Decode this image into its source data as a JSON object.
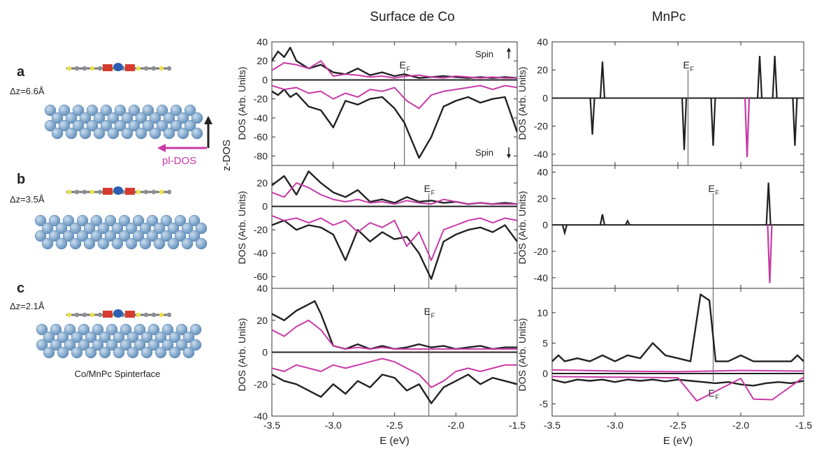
{
  "columns": {
    "left_title": "Surface de Co",
    "right_title": "MnPc"
  },
  "rows": [
    {
      "label": "a",
      "dz": "Δz=6.6Å"
    },
    {
      "label": "b",
      "dz": "Δz=3.5Å"
    },
    {
      "label": "c",
      "dz": "Δz=2.1Å"
    }
  ],
  "structure_caption": "Co/MnPc Spinterface",
  "arrows": {
    "z_dos": "z-DOS",
    "pl_dos": "pl-DOS"
  },
  "spin_labels": {
    "up": "Spin",
    "down": "Spin"
  },
  "fermi_label": "E",
  "fermi_sub": "F",
  "xlabel": "E (eV)",
  "ylabel": "DOS (Arb. Units)",
  "colors": {
    "z": "#222222",
    "pl": "#c83aa6",
    "gray": "#9a9a9a",
    "atom": "#7fa7cf"
  },
  "chart_data": [
    {
      "type": "line",
      "panel": "left-a",
      "xlim": [
        -3.5,
        -1.5
      ],
      "ylim": [
        -90,
        40
      ],
      "yticks": [
        -80,
        -60,
        -40,
        -20,
        0,
        20,
        40
      ],
      "fermi": -2.42,
      "series": [
        {
          "x": [
            -3.5,
            -3.45,
            -3.4,
            -3.35,
            -3.3,
            -3.2,
            -3.1,
            -3.0,
            -2.9,
            -2.8,
            -2.7,
            -2.6,
            -2.5,
            -2.42,
            -2.3,
            -2.2,
            -2.1,
            -2.0,
            -1.9,
            -1.8,
            -1.7,
            -1.6,
            -1.5
          ],
          "y": [
            20,
            30,
            24,
            34,
            20,
            12,
            16,
            8,
            6,
            12,
            5,
            8,
            4,
            6,
            2,
            3,
            4,
            3,
            2,
            3,
            2,
            3,
            2
          ]
        },
        {
          "x": [
            -3.5,
            -3.45,
            -3.4,
            -3.35,
            -3.3,
            -3.2,
            -3.1,
            -3.0,
            -2.9,
            -2.8,
            -2.7,
            -2.6,
            -2.5,
            -2.42,
            -2.3,
            -2.2,
            -2.1,
            -2.0,
            -1.9,
            -1.8,
            -1.7,
            -1.6,
            -1.5
          ],
          "y": [
            -12,
            -16,
            -10,
            -18,
            -14,
            -28,
            -32,
            -50,
            -22,
            -26,
            -20,
            -18,
            -30,
            -45,
            -82,
            -60,
            -28,
            -22,
            -18,
            -24,
            -20,
            -18,
            -55
          ]
        },
        {
          "x": [
            -3.5,
            -3.4,
            -3.3,
            -3.2,
            -3.1,
            -3.0,
            -2.9,
            -2.8,
            -2.7,
            -2.6,
            -2.5,
            -2.4,
            -2.3,
            -2.2,
            -2.1,
            -2.0,
            -1.9,
            -1.8,
            -1.7,
            -1.6,
            -1.5
          ],
          "y": [
            10,
            18,
            16,
            12,
            20,
            4,
            6,
            5,
            3,
            4,
            2,
            4,
            5,
            3,
            2,
            4,
            3,
            2,
            3,
            2,
            2
          ]
        },
        {
          "x": [
            -3.5,
            -3.4,
            -3.3,
            -3.2,
            -3.1,
            -3.0,
            -2.9,
            -2.8,
            -2.7,
            -2.6,
            -2.5,
            -2.4,
            -2.3,
            -2.2,
            -2.1,
            -2.0,
            -1.9,
            -1.8,
            -1.7,
            -1.6,
            -1.5
          ],
          "y": [
            -6,
            -10,
            -8,
            -14,
            -12,
            -20,
            -14,
            -18,
            -10,
            -12,
            -8,
            -22,
            -30,
            -16,
            -12,
            -10,
            -8,
            -6,
            -10,
            -6,
            -8
          ]
        }
      ]
    },
    {
      "type": "line",
      "panel": "left-b",
      "xlim": [
        -3.5,
        -1.5
      ],
      "ylim": [
        -70,
        35
      ],
      "yticks": [
        -60,
        -40,
        -20,
        0,
        20
      ],
      "fermi": -2.22,
      "series": [
        {
          "x": [
            -3.5,
            -3.4,
            -3.3,
            -3.2,
            -3.1,
            -3.0,
            -2.9,
            -2.8,
            -2.7,
            -2.6,
            -2.5,
            -2.4,
            -2.3,
            -2.2,
            -2.1,
            -2.0,
            -1.9,
            -1.8,
            -1.7,
            -1.6,
            -1.5
          ],
          "y": [
            18,
            26,
            10,
            30,
            20,
            12,
            8,
            14,
            4,
            6,
            3,
            8,
            4,
            5,
            3,
            4,
            2,
            3,
            2,
            3,
            2
          ]
        },
        {
          "x": [
            -3.5,
            -3.4,
            -3.3,
            -3.2,
            -3.1,
            -3.0,
            -2.9,
            -2.8,
            -2.7,
            -2.6,
            -2.5,
            -2.4,
            -2.3,
            -2.2,
            -2.1,
            -2.0,
            -1.9,
            -1.8,
            -1.7,
            -1.6,
            -1.5
          ],
          "y": [
            -16,
            -12,
            -20,
            -16,
            -18,
            -24,
            -46,
            -20,
            -30,
            -22,
            -28,
            -26,
            -40,
            -62,
            -30,
            -24,
            -20,
            -18,
            -22,
            -16,
            -30
          ]
        },
        {
          "x": [
            -3.5,
            -3.4,
            -3.3,
            -3.2,
            -3.1,
            -3.0,
            -2.9,
            -2.8,
            -2.7,
            -2.6,
            -2.5,
            -2.4,
            -2.3,
            -2.2,
            -2.1,
            -2.0,
            -1.9,
            -1.8,
            -1.7,
            -1.6,
            -1.5
          ],
          "y": [
            12,
            8,
            20,
            16,
            10,
            6,
            4,
            6,
            3,
            4,
            2,
            5,
            3,
            2,
            6,
            4,
            2,
            3,
            2,
            2,
            2
          ]
        },
        {
          "x": [
            -3.5,
            -3.4,
            -3.3,
            -3.2,
            -3.1,
            -3.0,
            -2.9,
            -2.8,
            -2.7,
            -2.6,
            -2.5,
            -2.4,
            -2.3,
            -2.2,
            -2.1,
            -2.0,
            -1.9,
            -1.8,
            -1.7,
            -1.6,
            -1.5
          ],
          "y": [
            -8,
            -12,
            -10,
            -14,
            -10,
            -16,
            -12,
            -22,
            -14,
            -18,
            -12,
            -34,
            -22,
            -46,
            -20,
            -16,
            -12,
            -10,
            -14,
            -10,
            -12
          ]
        }
      ]
    },
    {
      "type": "line",
      "panel": "left-c",
      "xlim": [
        -3.5,
        -1.5
      ],
      "ylim": [
        -40,
        40
      ],
      "yticks": [
        -40,
        -20,
        0,
        20,
        40
      ],
      "fermi": -2.22,
      "series": [
        {
          "x": [
            -3.5,
            -3.4,
            -3.3,
            -3.2,
            -3.15,
            -3.1,
            -3.0,
            -2.9,
            -2.8,
            -2.7,
            -2.6,
            -2.5,
            -2.4,
            -2.3,
            -2.2,
            -2.1,
            -2.0,
            -1.9,
            -1.8,
            -1.7,
            -1.6,
            -1.5
          ],
          "y": [
            24,
            20,
            26,
            30,
            32,
            24,
            4,
            2,
            5,
            2,
            4,
            2,
            3,
            5,
            3,
            4,
            2,
            3,
            4,
            2,
            3,
            3
          ]
        },
        {
          "x": [
            -3.5,
            -3.4,
            -3.3,
            -3.2,
            -3.1,
            -3.0,
            -2.9,
            -2.8,
            -2.7,
            -2.6,
            -2.5,
            -2.4,
            -2.3,
            -2.2,
            -2.1,
            -2.0,
            -1.9,
            -1.8,
            -1.7,
            -1.6,
            -1.5
          ],
          "y": [
            -14,
            -18,
            -20,
            -24,
            -28,
            -20,
            -26,
            -18,
            -22,
            -14,
            -16,
            -24,
            -20,
            -32,
            -22,
            -18,
            -14,
            -20,
            -16,
            -18,
            -20
          ]
        },
        {
          "x": [
            -3.5,
            -3.4,
            -3.3,
            -3.2,
            -3.1,
            -3.0,
            -2.9,
            -2.8,
            -2.7,
            -2.6,
            -2.5,
            -2.4,
            -2.3,
            -2.2,
            -2.1,
            -2.0,
            -1.9,
            -1.8,
            -1.7,
            -1.6,
            -1.5
          ],
          "y": [
            14,
            10,
            16,
            20,
            14,
            4,
            2,
            3,
            2,
            3,
            2,
            2,
            2,
            2,
            2,
            2,
            2,
            2,
            2,
            2,
            2
          ]
        },
        {
          "x": [
            -3.5,
            -3.4,
            -3.3,
            -3.2,
            -3.1,
            -3.0,
            -2.9,
            -2.8,
            -2.7,
            -2.6,
            -2.5,
            -2.4,
            -2.3,
            -2.2,
            -2.1,
            -2.0,
            -1.9,
            -1.8,
            -1.7,
            -1.6,
            -1.5
          ],
          "y": [
            -10,
            -12,
            -8,
            -10,
            -12,
            -8,
            -10,
            -8,
            -6,
            -4,
            -6,
            -10,
            -14,
            -22,
            -18,
            -12,
            -10,
            -12,
            -10,
            -8,
            -8
          ]
        }
      ]
    },
    {
      "type": "line",
      "panel": "right-a",
      "xlim": [
        -3.5,
        -1.5
      ],
      "ylim": [
        -48,
        40
      ],
      "yticks": [
        -40,
        -20,
        0,
        20,
        40
      ],
      "fermi": -2.42,
      "series": [
        {
          "x": [
            -3.18,
            -3.1,
            -2.45,
            -2.22,
            -1.85,
            -1.73,
            -1.57
          ],
          "y": [
            -26,
            26,
            -37,
            -34,
            30,
            30,
            -34
          ]
        },
        {
          "x": [
            -1.95
          ],
          "y": [
            -42
          ]
        }
      ]
    },
    {
      "type": "line",
      "panel": "right-b",
      "xlim": [
        -3.5,
        -1.5
      ],
      "ylim": [
        -48,
        45
      ],
      "yticks": [
        -40,
        -20,
        0,
        20,
        40
      ],
      "fermi": -2.22,
      "series": [
        {
          "x": [
            -3.4,
            -3.1,
            -2.9,
            -1.78
          ],
          "y": [
            -6,
            8,
            3,
            32
          ]
        },
        {
          "x": [
            -1.77
          ],
          "y": [
            -44
          ]
        }
      ]
    },
    {
      "type": "line",
      "panel": "right-c",
      "xlim": [
        -3.5,
        -1.5
      ],
      "ylim": [
        -7,
        14
      ],
      "yticks": [
        -5,
        0,
        5,
        10
      ],
      "fermi": -2.22,
      "series": [
        {
          "x": [
            -3.5,
            -3.45,
            -3.4,
            -3.3,
            -3.2,
            -3.1,
            -3.0,
            -2.9,
            -2.8,
            -2.7,
            -2.65,
            -2.6,
            -2.5,
            -2.4,
            -2.32,
            -2.25,
            -2.2,
            -2.1,
            -2.0,
            -1.9,
            -1.8,
            -1.7,
            -1.6,
            -1.55,
            -1.5
          ],
          "y": [
            2,
            3,
            2,
            2.5,
            2,
            3,
            2,
            3,
            2.5,
            5,
            4,
            3,
            2.5,
            2,
            13,
            12,
            2,
            2,
            3,
            2,
            2,
            2,
            2,
            3,
            2
          ]
        },
        {
          "x": [
            -3.5,
            -3.4,
            -3.3,
            -3.2,
            -3.1,
            -3.0,
            -2.9,
            -2.8,
            -2.7,
            -2.6,
            -2.5,
            -2.4,
            -2.3,
            -2.2,
            -2.1,
            -2.0,
            -1.9,
            -1.8,
            -1.7,
            -1.6,
            -1.5
          ],
          "y": [
            -1,
            -1.5,
            -1,
            -1.2,
            -1,
            -1.4,
            -1,
            -1.2,
            -1,
            -1.3,
            -1,
            -1.2,
            -1.4,
            -1.6,
            -1.4,
            -1.8,
            -2,
            -1.6,
            -1.4,
            -1.6,
            -1.2
          ]
        },
        {
          "x": [
            -3.5,
            -3.0,
            -2.5,
            -2.0,
            -1.5
          ],
          "y": [
            0.6,
            0.4,
            0.3,
            0.5,
            0.4
          ]
        },
        {
          "x": [
            -3.5,
            -3.0,
            -2.5,
            -2.35,
            -2.0,
            -1.9,
            -1.75,
            -1.5
          ],
          "y": [
            -0.5,
            -0.6,
            -0.7,
            -4.5,
            -0.8,
            -4.2,
            -4.3,
            -0.6
          ]
        }
      ]
    }
  ]
}
